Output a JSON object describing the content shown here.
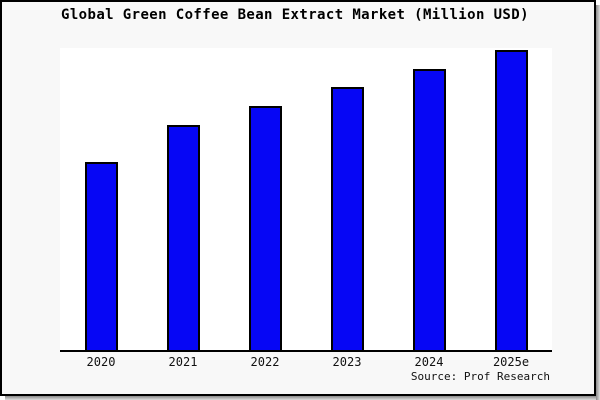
{
  "chart_data": {
    "type": "bar",
    "title": "Global Green Coffee Bean Extract Market (Million USD)",
    "categories": [
      "2020",
      "2021",
      "2022",
      "2023",
      "2024",
      "2025e"
    ],
    "values": [
      62.3,
      74.5,
      80.8,
      87.1,
      93.0,
      99.3
    ],
    "note": "No y-axis ticks, labels or gridlines are shown in the image; values are bar heights estimated as percent of plot height.",
    "xlabel": "",
    "ylabel": "",
    "ylim": [
      0,
      100
    ],
    "grid": false,
    "legend": "none",
    "source": "Source: Prof Research",
    "colors": {
      "bar_fill": "#0606f5",
      "bar_border": "#000000",
      "plot_background": "#ffffff",
      "page_background": "#f8f8f8",
      "axis": "#000000",
      "text": "#000000"
    }
  }
}
